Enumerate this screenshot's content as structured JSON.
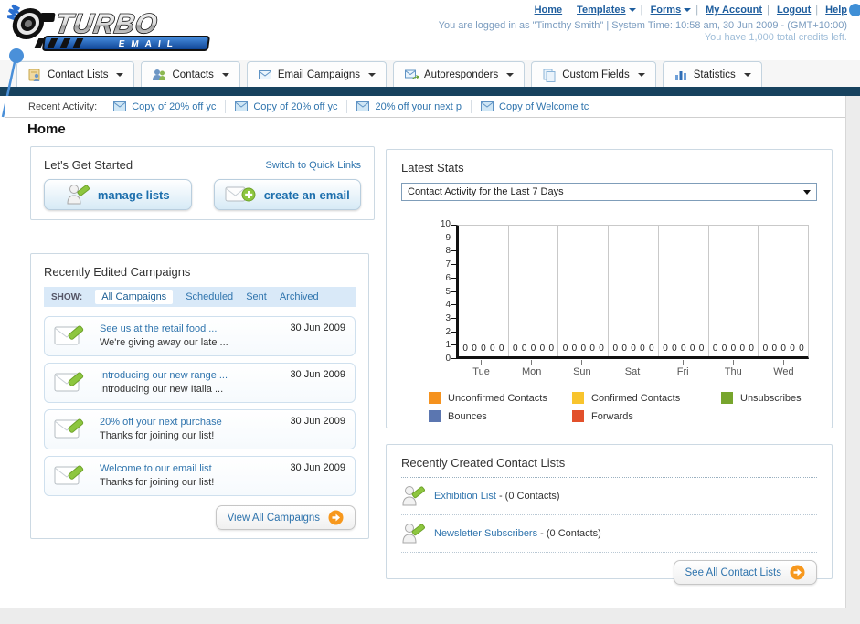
{
  "colors": {
    "navy_bar": "#17425e",
    "link_blue": "#2f74ad",
    "accent_orange": "#f7981d",
    "legend_orange": "#f5921e",
    "legend_yellow": "#f8c42d",
    "legend_green": "#77a52d",
    "legend_slate": "#5b76b0",
    "legend_red": "#e2502b"
  },
  "header": {
    "logo_line1": "TURBO",
    "logo_line2": "E M A I L",
    "links": [
      {
        "label": "Home",
        "dropdown": false
      },
      {
        "label": "Templates",
        "dropdown": true
      },
      {
        "label": "Forms",
        "dropdown": true
      },
      {
        "label": "My Account",
        "dropdown": false
      },
      {
        "label": "Logout",
        "dropdown": false
      },
      {
        "label": "Help",
        "dropdown": false
      }
    ],
    "login_line": "You are logged in as \"Timothy Smith\" | System Time: 10:58 am, 30 Jun 2009 - (GMT+10:00)",
    "credits_line": "You have 1,000 total credits left."
  },
  "tabs": [
    {
      "label": "Contact Lists"
    },
    {
      "label": "Contacts"
    },
    {
      "label": "Email Campaigns"
    },
    {
      "label": "Autoresponders"
    },
    {
      "label": "Custom Fields"
    },
    {
      "label": "Statistics"
    }
  ],
  "recent_activity": {
    "label": "Recent Activity:",
    "items": [
      "Copy of 20% off yc",
      "Copy of 20% off yc",
      "20% off your next p",
      "Copy of Welcome tc"
    ]
  },
  "home_title": "Home",
  "get_started": {
    "title": "Let's Get Started",
    "switch_link": "Switch to Quick Links",
    "manage_lists_label": "manage lists",
    "create_email_label": "create an email"
  },
  "campaigns": {
    "title": "Recently Edited Campaigns",
    "show_label": "SHOW:",
    "filters": [
      "All Campaigns",
      "Scheduled",
      "Sent",
      "Archived"
    ],
    "items": [
      {
        "title": "See us at the retail food ...",
        "subtitle": "We're giving away our late ...",
        "date": "30 Jun 2009"
      },
      {
        "title": "Introducing our new range ...",
        "subtitle": "Introducing our new Italia ...",
        "date": "30 Jun 2009"
      },
      {
        "title": "20% off your next purchase",
        "subtitle": "Thanks for joining our list!",
        "date": "30 Jun 2009"
      },
      {
        "title": "Welcome to our email list",
        "subtitle": "Thanks for joining our list!",
        "date": "30 Jun 2009"
      }
    ],
    "view_all": "View All Campaigns"
  },
  "stats": {
    "title": "Latest Stats",
    "dropdown_value": "Contact Activity for the Last 7 Days"
  },
  "chart_data": {
    "type": "bar",
    "title": "Contact Activity for the Last 7 Days",
    "categories": [
      "Tue",
      "Mon",
      "Sun",
      "Sat",
      "Fri",
      "Thu",
      "Wed"
    ],
    "series": [
      {
        "name": "Unconfirmed Contacts",
        "color": "#f5921e",
        "values": [
          0,
          0,
          0,
          0,
          0,
          0,
          0
        ]
      },
      {
        "name": "Confirmed Contacts",
        "color": "#f8c42d",
        "values": [
          0,
          0,
          0,
          0,
          0,
          0,
          0
        ]
      },
      {
        "name": "Unsubscribes",
        "color": "#77a52d",
        "values": [
          0,
          0,
          0,
          0,
          0,
          0,
          0
        ]
      },
      {
        "name": "Bounces",
        "color": "#5b76b0",
        "values": [
          0,
          0,
          0,
          0,
          0,
          0,
          0
        ]
      },
      {
        "name": "Forwards",
        "color": "#e2502b",
        "values": [
          0,
          0,
          0,
          0,
          0,
          0,
          0
        ]
      }
    ],
    "ylim": [
      0,
      10
    ],
    "yticks": [
      0,
      1,
      2,
      3,
      4,
      5,
      6,
      7,
      8,
      9,
      10
    ],
    "grid": "vertical",
    "legend_position": "bottom"
  },
  "contact_lists": {
    "title": "Recently Created Contact Lists",
    "items": [
      {
        "name": "Exhibition List",
        "count": "- (0 Contacts)"
      },
      {
        "name": "Newsletter Subscribers",
        "count": "- (0 Contacts)"
      }
    ],
    "see_all": "See All Contact Lists"
  }
}
